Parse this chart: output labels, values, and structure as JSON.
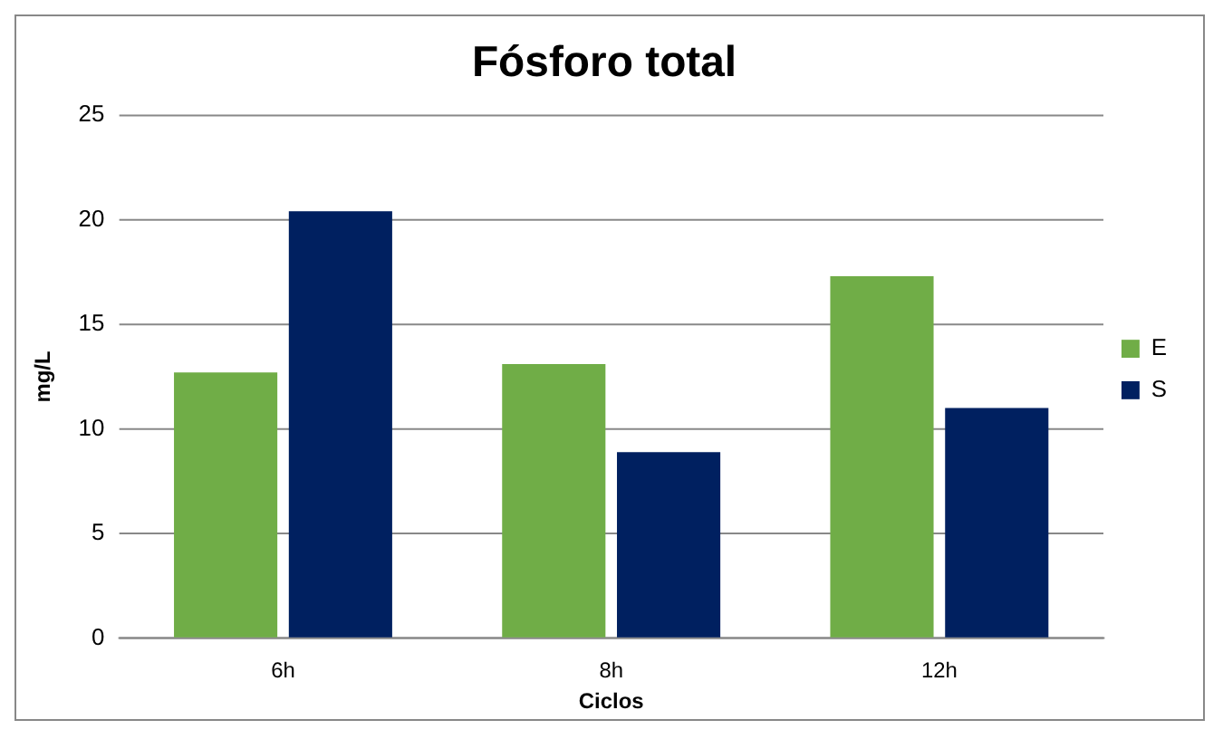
{
  "chart_data": {
    "type": "bar",
    "title": "Fósforo total",
    "xlabel": "Ciclos",
    "ylabel": "mg/L",
    "categories": [
      "6h",
      "8h",
      "12h"
    ],
    "series": [
      {
        "name": "E",
        "color": "#70ad47",
        "values": [
          12.7,
          13.1,
          17.3
        ]
      },
      {
        "name": "S",
        "color": "#002060",
        "values": [
          20.4,
          8.9,
          11
        ]
      }
    ],
    "ylim": [
      0,
      25
    ],
    "yticks": [
      0,
      5,
      10,
      15,
      20,
      25
    ],
    "grid": "y",
    "legend": "right"
  }
}
